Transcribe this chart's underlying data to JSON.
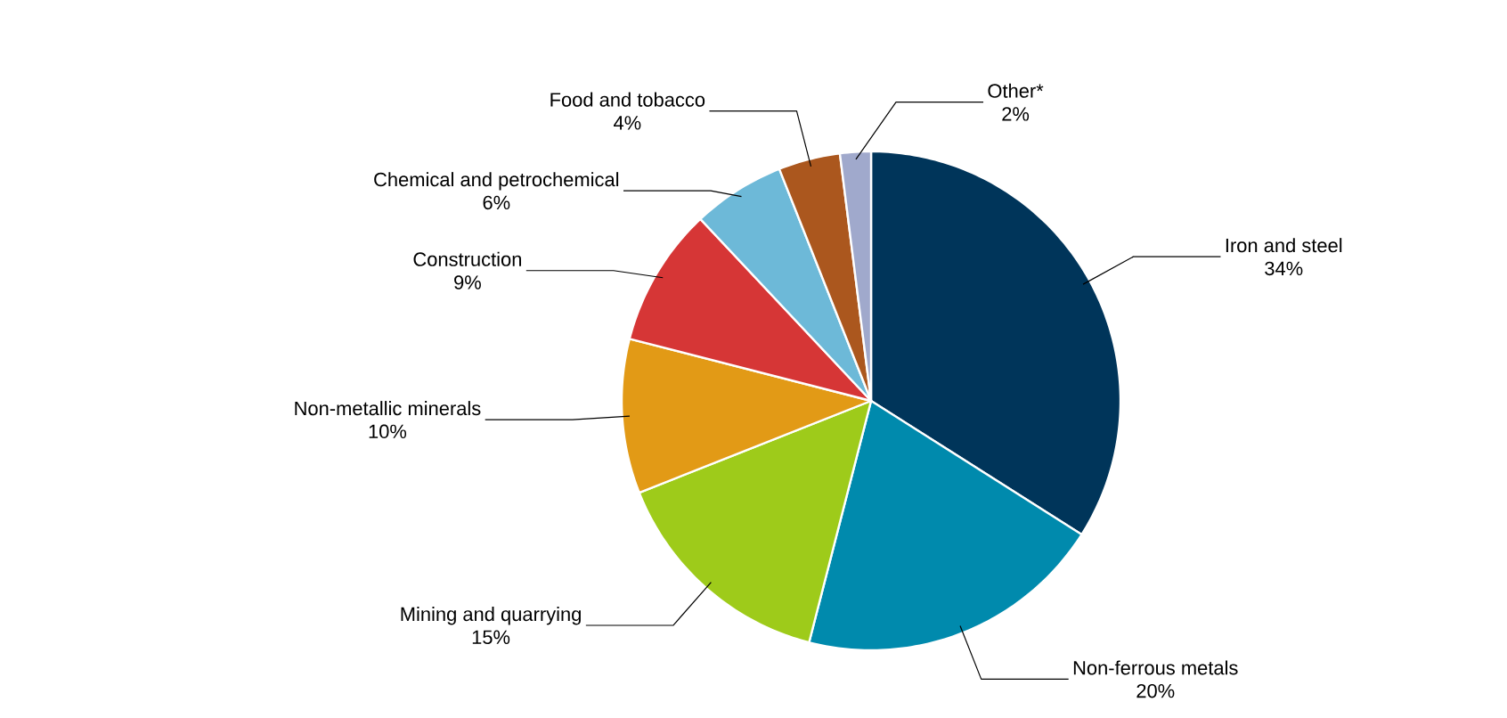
{
  "chart_data": {
    "type": "pie",
    "categories": [
      "Iron and steel",
      "Non-ferrous metals",
      "Mining and quarrying",
      "Non-metallic minerals",
      "Construction",
      "Chemical and petrochemical",
      "Food and tobacco",
      "Other*"
    ],
    "values": [
      34,
      20,
      15,
      10,
      9,
      6,
      4,
      2
    ],
    "colors": [
      "#00355a",
      "#008aad",
      "#9ecb1a",
      "#e29a16",
      "#d63636",
      "#6db9d8",
      "#ab571e",
      "#a0a9cc"
    ],
    "value_labels": [
      "34%",
      "20%",
      "15%",
      "10%",
      "9%",
      "6%",
      "4%",
      "2%"
    ]
  }
}
